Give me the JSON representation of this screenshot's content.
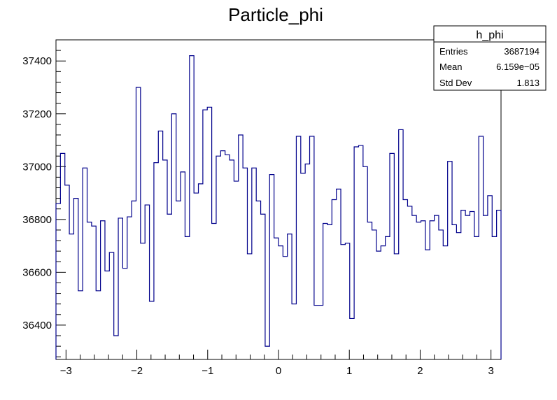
{
  "chart_data": {
    "type": "histogram",
    "title": "Particle_phi",
    "xlabel": "",
    "ylabel": "",
    "xlim": [
      -3.1416,
      3.1416
    ],
    "ylim": [
      36270,
      37480
    ],
    "x_ticks": [
      -3,
      -2,
      -1,
      0,
      1,
      2,
      3
    ],
    "x_tick_labels": [
      "−3",
      "−2",
      "−1",
      "0",
      "1",
      "2",
      "3"
    ],
    "y_ticks": [
      36400,
      36600,
      36800,
      37000,
      37200,
      37400
    ],
    "y_tick_labels": [
      "36400",
      "36600",
      "36800",
      "37000",
      "37200",
      "37400"
    ],
    "bins": 100,
    "line_color": "#00008b",
    "values": [
      36860,
      37050,
      36930,
      36745,
      36880,
      36530,
      36995,
      36790,
      36775,
      36530,
      36795,
      36605,
      36675,
      36360,
      36805,
      36615,
      36810,
      36870,
      37300,
      36710,
      36855,
      36490,
      37015,
      37135,
      37025,
      36820,
      37200,
      36870,
      36980,
      36735,
      37420,
      36900,
      36935,
      37215,
      37225,
      36785,
      37040,
      37060,
      37045,
      37025,
      36945,
      37120,
      36995,
      36670,
      36995,
      36870,
      36820,
      36320,
      36970,
      36730,
      36700,
      36660,
      36745,
      36480,
      37115,
      36975,
      37010,
      37115,
      36475,
      36475,
      36785,
      36780,
      36875,
      36915,
      36705,
      36710,
      36425,
      37075,
      37080,
      37000,
      36790,
      36760,
      36680,
      36700,
      36735,
      37050,
      36670,
      37140,
      36875,
      36850,
      36815,
      36790,
      36795,
      36685,
      36795,
      36815,
      36760,
      36700,
      37020,
      36780,
      36750,
      36835,
      36815,
      36830,
      36735,
      37115,
      36815,
      36890,
      36735,
      36835
    ]
  },
  "stats": {
    "name": "h_phi",
    "rows": [
      {
        "label": "Entries",
        "value": "3687194"
      },
      {
        "label": "Mean",
        "value": "6.159e−05"
      },
      {
        "label": "Std Dev",
        "value": "1.813"
      }
    ]
  }
}
